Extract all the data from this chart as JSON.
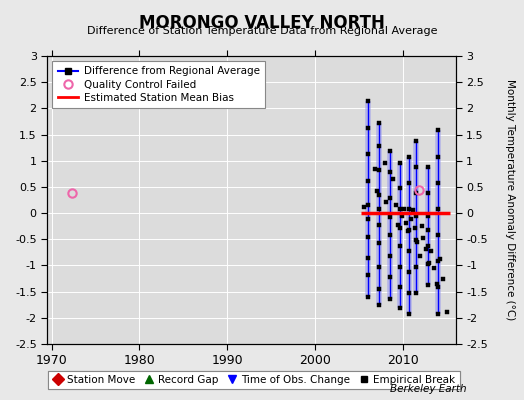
{
  "title": "MORONGO VALLEY NORTH",
  "subtitle": "Difference of Station Temperature Data from Regional Average",
  "ylabel": "Monthly Temperature Anomaly Difference (°C)",
  "ylim": [
    -2.5,
    3.0
  ],
  "xlim": [
    1969.5,
    2016
  ],
  "xticks": [
    1970,
    1980,
    1990,
    2000,
    2010
  ],
  "yticks": [
    -2.5,
    -2,
    -1.5,
    -1,
    -0.5,
    0,
    0.5,
    1,
    1.5,
    2,
    2.5,
    3
  ],
  "bg_color": "#e8e8e8",
  "plot_bg_color": "#dcdcdc",
  "qc_fail_point_1": [
    1972.3,
    0.38
  ],
  "qc_fail_point_2": [
    2011.85,
    0.45
  ],
  "mean_bias_xmin": 2005.2,
  "mean_bias_xmax": 2015.3,
  "mean_bias_y": 0.0,
  "strands": [
    {
      "x": 2006.0,
      "y": [
        2.15,
        1.62,
        1.12,
        0.62,
        0.15,
        -0.12,
        -0.45,
        -0.85,
        -1.18,
        -1.6
      ]
    },
    {
      "x": 2007.3,
      "y": [
        1.72,
        1.28,
        0.82,
        0.35,
        0.08,
        -0.22,
        -0.58,
        -1.02,
        -1.45,
        -1.75
      ]
    },
    {
      "x": 2008.5,
      "y": [
        1.18,
        0.78,
        0.28,
        -0.08,
        -0.42,
        -0.82,
        -1.22,
        -1.65
      ]
    },
    {
      "x": 2009.6,
      "y": [
        0.95,
        0.48,
        0.08,
        -0.28,
        -0.62,
        -1.02,
        -1.42,
        -1.82
      ]
    },
    {
      "x": 2010.7,
      "y": [
        1.08,
        0.58,
        0.08,
        -0.32,
        -0.72,
        -1.12,
        -1.52,
        -1.92
      ]
    },
    {
      "x": 2011.5,
      "y": [
        1.38,
        0.88,
        0.38,
        -0.05,
        -0.52,
        -1.02,
        -1.52
      ]
    },
    {
      "x": 2012.8,
      "y": [
        0.88,
        0.38,
        -0.05,
        -0.32,
        -0.62,
        -0.98,
        -1.38
      ]
    },
    {
      "x": 2014.0,
      "y": [
        1.58,
        1.08,
        0.58,
        0.08,
        -0.42,
        -0.92,
        -1.42,
        -1.92
      ]
    }
  ],
  "scatter_x": [
    2005.5,
    2006.8,
    2007.0,
    2007.9,
    2008.1,
    2008.8,
    2009.2,
    2009.4,
    2009.9,
    2010.1,
    2010.3,
    2010.6,
    2010.9,
    2011.1,
    2011.3,
    2011.6,
    2011.9,
    2012.1,
    2012.3,
    2012.6,
    2012.9,
    2013.2,
    2013.5,
    2013.8,
    2014.2,
    2014.5,
    2015.0
  ],
  "scatter_y": [
    0.12,
    0.85,
    0.42,
    0.95,
    0.22,
    0.65,
    0.15,
    -0.22,
    -0.05,
    0.08,
    -0.18,
    -0.35,
    -0.12,
    0.05,
    -0.28,
    -0.55,
    -0.82,
    -0.25,
    -0.48,
    -0.68,
    -0.95,
    -0.72,
    -1.05,
    -1.35,
    -0.88,
    -1.25,
    -1.88
  ]
}
